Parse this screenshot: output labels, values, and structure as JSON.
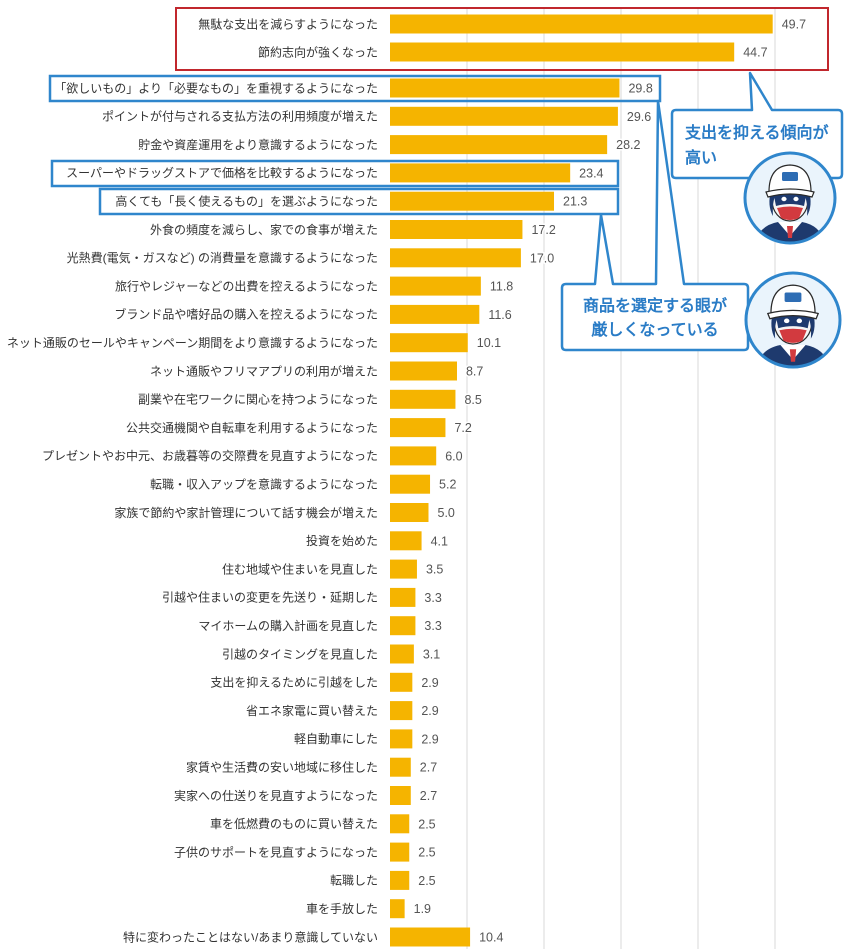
{
  "chart_data": {
    "type": "bar",
    "orientation": "horizontal",
    "categories": [
      "無駄な支出を減らすようになった",
      "節約志向が強くなった",
      "「欲しいもの」より「必要なもの」を重視するようになった",
      "ポイントが付与される支払方法の利用頻度が増えた",
      "貯金や資産運用をより意識するようになった",
      "スーパーやドラッグストアで価格を比較するようになった",
      "高くても「長く使えるもの」を選ぶようになった",
      "外食の頻度を減らし、家での食事が増えた",
      "光熱費(電気・ガスなど) の消費量を意識するようになった",
      "旅行やレジャーなどの出費を控えるようになった",
      "ブランド品や嗜好品の購入を控えるようになった",
      "ネット通販のセールやキャンペーン期間をより意識するようになった",
      "ネット通販やフリマアプリの利用が増えた",
      "副業や在宅ワークに関心を持つようになった",
      "公共交通機関や自転車を利用するようになった",
      "プレゼントやお中元、お歳暮等の交際費を見直すようになった",
      "転職・収入アップを意識するようになった",
      "家族で節約や家計管理について話す機会が増えた",
      "投資を始めた",
      "住む地域や住まいを見直した",
      "引越や住まいの変更を先送り・延期した",
      "マイホームの購入計画を見直した",
      "引越のタイミングを見直した",
      "支出を抑えるために引越をした",
      "省エネ家電に買い替えた",
      "軽自動車にした",
      "家賃や生活費の安い地域に移住した",
      "実家への仕送りを見直すようになった",
      "車を低燃費のものに買い替えた",
      "子供のサポートを見直すようになった",
      "転職した",
      "車を手放した",
      "特に変わったことはない/あまり意識していない"
    ],
    "values": [
      49.7,
      44.7,
      29.8,
      29.6,
      28.2,
      23.4,
      21.3,
      17.2,
      17.0,
      11.8,
      11.6,
      10.1,
      8.7,
      8.5,
      7.2,
      6.0,
      5.2,
      5.0,
      4.1,
      3.5,
      3.3,
      3.3,
      3.1,
      2.9,
      2.9,
      2.9,
      2.7,
      2.7,
      2.5,
      2.5,
      2.5,
      1.9,
      10.4
    ],
    "xlim": [
      0,
      60
    ],
    "grid": true
  },
  "callouts": {
    "spending_restraint": {
      "lines": [
        "支出を抑える傾向が",
        "高い"
      ]
    },
    "product_selection": {
      "lines": [
        "商品を選定する眼が",
        "厳しくなっている"
      ]
    }
  },
  "icons": {
    "avatar_1": "mascot-avatar-icon",
    "avatar_2": "mascot-avatar-icon"
  },
  "colors": {
    "bar": "#F5B400",
    "highlight_red": "#C1272D",
    "highlight_blue": "#2F86CC",
    "callout_text": "#2A7CC6",
    "avatar_background": "#EAF4FC"
  }
}
